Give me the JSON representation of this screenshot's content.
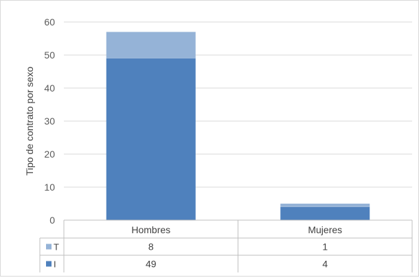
{
  "chart_data": {
    "type": "bar",
    "stacked": true,
    "categories": [
      "Hombres",
      "Mujeres"
    ],
    "series": [
      {
        "name": "I",
        "values": [
          49,
          4
        ],
        "color": "#4f81bd"
      },
      {
        "name": "T",
        "values": [
          8,
          1
        ],
        "color": "#95b3d7"
      }
    ],
    "ylabel": "Tipo de contrato por sexo",
    "ylim": [
      0,
      60
    ],
    "yticks": [
      0,
      10,
      20,
      30,
      40,
      50,
      60
    ],
    "grid": true,
    "data_table": {
      "rows": [
        {
          "series": "T",
          "values": [
            "8",
            "1"
          ]
        },
        {
          "series": "I",
          "values": [
            "49",
            "4"
          ]
        }
      ]
    }
  }
}
